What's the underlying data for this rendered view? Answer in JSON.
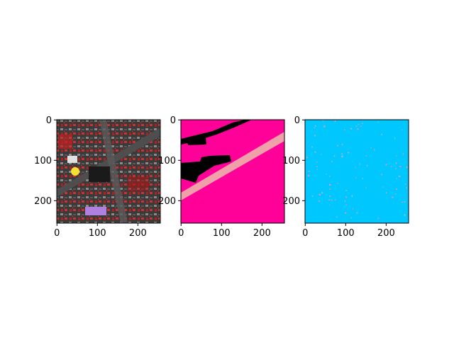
{
  "chart_data": [
    {
      "type": "heatmap",
      "description_tag": "image-panel-1",
      "content": "false-color satellite image of urban area",
      "xlim": [
        0,
        255
      ],
      "ylim": [
        255,
        0
      ],
      "x_ticks": [
        0,
        100,
        200
      ],
      "y_ticks": [
        0,
        100,
        200
      ],
      "grid": false
    },
    {
      "type": "heatmap",
      "content": "segmentation mask",
      "xlim": [
        0,
        255
      ],
      "ylim": [
        255,
        0
      ],
      "x_ticks": [
        0,
        100,
        200
      ],
      "y_ticks": [
        0,
        100,
        200
      ],
      "grid": false,
      "colors": {
        "background": "#ff0099",
        "road": "#f0a0a8",
        "building": "#000000"
      }
    },
    {
      "type": "heatmap",
      "content": "predicted mask",
      "xlim": [
        0,
        255
      ],
      "ylim": [
        255,
        0
      ],
      "x_ticks": [
        0,
        100,
        200
      ],
      "y_ticks": [
        0,
        100,
        200
      ],
      "grid": false,
      "colors": {
        "background": "#00c8ff",
        "noise": "#9fb8c8"
      }
    }
  ]
}
